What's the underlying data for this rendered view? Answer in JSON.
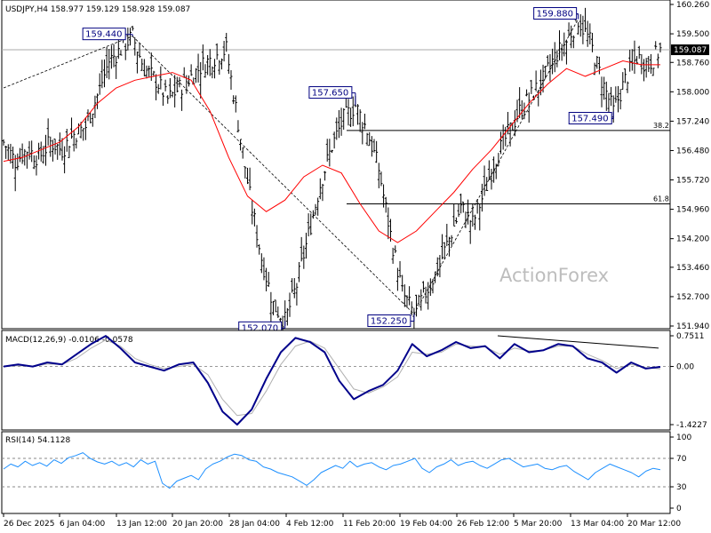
{
  "chart_data": [
    {
      "type": "candlestick",
      "title": "USDJPY,H4  158.977 159.129 158.928 159.087",
      "symbol": "USDJPY",
      "timeframe": "H4",
      "ohlc": {
        "open": 158.977,
        "high": 159.129,
        "low": 158.928,
        "close": 159.087
      },
      "current_price": "159.087",
      "ylim": [
        151.94,
        160.26
      ],
      "y_ticks": [
        "160.260",
        "159.500",
        "158.760",
        "158.000",
        "157.240",
        "156.480",
        "155.720",
        "154.960",
        "154.200",
        "153.460",
        "152.700",
        "151.940"
      ],
      "x_ticks": [
        "26 Dec 2025",
        "6 Jan 04:00",
        "13 Jan 12:00",
        "20 Jan 20:00",
        "28 Jan 04:00",
        "4 Feb 12:00",
        "11 Feb 20:00",
        "19 Feb 04:00",
        "26 Feb 12:00",
        "5 Mar 20:00",
        "13 Mar 04:00",
        "20 Mar 12:00"
      ],
      "close_path": [
        156.7,
        156.2,
        156.5,
        156.3,
        156.7,
        156.5,
        156.9,
        157.1,
        157.9,
        158.8,
        159.1,
        159.44,
        158.6,
        158.3,
        157.8,
        158.1,
        158.4,
        158.7,
        158.9,
        159.1,
        157.2,
        155.3,
        153.7,
        152.5,
        152.07,
        153.0,
        154.3,
        155.6,
        156.6,
        157.3,
        157.65,
        157.0,
        156.0,
        154.3,
        152.8,
        152.25,
        152.8,
        153.4,
        154.2,
        155.0,
        154.6,
        155.4,
        156.3,
        156.9,
        157.5,
        157.9,
        158.3,
        158.9,
        159.3,
        159.88,
        159.3,
        158.3,
        157.49,
        158.3,
        158.9,
        158.7,
        159.087
      ],
      "ma_path": [
        156.2,
        156.3,
        156.5,
        156.7,
        157.1,
        157.7,
        158.1,
        158.3,
        158.4,
        158.5,
        158.3,
        157.5,
        156.3,
        155.3,
        154.9,
        155.2,
        155.8,
        156.1,
        155.9,
        155.1,
        154.4,
        154.1,
        154.4,
        154.9,
        155.4,
        156.0,
        156.5,
        157.1,
        157.7,
        158.2,
        158.6,
        158.4,
        158.6,
        158.8,
        158.7,
        158.7
      ],
      "annotations": [
        "159.440",
        "152.070",
        "157.650",
        "152.250",
        "159.880",
        "157.490"
      ],
      "fib_levels": [
        {
          "label": "38.2",
          "value": 157.0
        },
        {
          "label": "61.8",
          "value": 155.1
        }
      ],
      "watermark": "ActionForex",
      "colors": {
        "price": "#000000",
        "ma": "#ff0000",
        "label_box": "#000080",
        "current_box": "#000000"
      }
    },
    {
      "type": "line",
      "title": "MACD(12,26,9) -0.0106 -0.0578",
      "name": "MACD(12,26,9)",
      "values_text": "-0.0106 -0.0578",
      "y_ticks": [
        "0.7511",
        "0.00",
        "-1.4227"
      ],
      "ylim": [
        -1.4227,
        0.7511
      ],
      "zero": "0.00",
      "macd": [
        0.0,
        0.05,
        0.0,
        0.1,
        0.05,
        0.3,
        0.55,
        0.75,
        0.45,
        0.1,
        0.0,
        -0.1,
        0.05,
        0.1,
        -0.4,
        -1.1,
        -1.4227,
        -1.05,
        -0.3,
        0.35,
        0.7,
        0.6,
        0.35,
        -0.35,
        -0.8,
        -0.6,
        -0.45,
        -0.1,
        0.55,
        0.25,
        0.4,
        0.6,
        0.45,
        0.5,
        0.2,
        0.55,
        0.35,
        0.4,
        0.55,
        0.5,
        0.2,
        0.1,
        -0.15,
        0.1,
        -0.05,
        -0.0106
      ],
      "signal": [
        0.0,
        0.02,
        0.0,
        0.06,
        0.05,
        0.2,
        0.45,
        0.65,
        0.5,
        0.2,
        0.05,
        -0.05,
        0.0,
        0.05,
        -0.2,
        -0.8,
        -1.2,
        -1.15,
        -0.6,
        0.05,
        0.5,
        0.62,
        0.45,
        -0.05,
        -0.55,
        -0.65,
        -0.5,
        -0.25,
        0.35,
        0.3,
        0.35,
        0.55,
        0.5,
        0.48,
        0.3,
        0.45,
        0.38,
        0.4,
        0.5,
        0.5,
        0.3,
        0.15,
        -0.05,
        0.05,
        -0.03,
        -0.0578
      ],
      "colors": {
        "macd": "#00008b",
        "signal": "#b0b0b0",
        "trendline": "#000000"
      }
    },
    {
      "type": "line",
      "title": "RSI(14) 54.1128",
      "name": "RSI(14)",
      "value_text": "54.1128",
      "y_ticks": [
        "100",
        "70",
        "30",
        "0"
      ],
      "ylim": [
        0,
        100
      ],
      "levels": [
        70,
        30
      ],
      "rsi": [
        55,
        62,
        58,
        66,
        60,
        64,
        59,
        68,
        63,
        71,
        74,
        78,
        70,
        65,
        62,
        66,
        60,
        64,
        58,
        68,
        62,
        66,
        35,
        28,
        38,
        42,
        46,
        40,
        55,
        62,
        66,
        72,
        76,
        74,
        68,
        66,
        58,
        55,
        50,
        47,
        44,
        38,
        32,
        40,
        50,
        55,
        60,
        56,
        66,
        58,
        62,
        64,
        58,
        54,
        60,
        62,
        66,
        70,
        56,
        50,
        58,
        62,
        68,
        60,
        64,
        66,
        60,
        56,
        62,
        68,
        70,
        64,
        58,
        60,
        62,
        56,
        54,
        58,
        60,
        52,
        46,
        40,
        50,
        56,
        62,
        58,
        54,
        50,
        44,
        52,
        56,
        54.1128
      ],
      "colors": {
        "rsi": "#1e90ff",
        "levels": "#888888"
      }
    }
  ]
}
